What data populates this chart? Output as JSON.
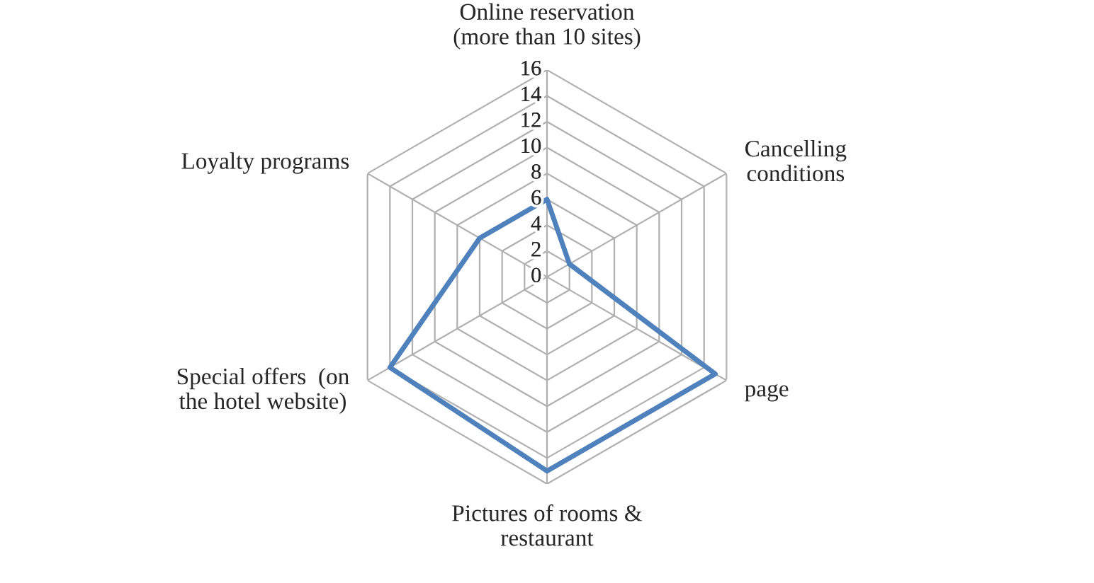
{
  "chart_data": {
    "type": "radar",
    "categories": [
      "Online reservation\n(more than 10 sites)",
      "Cancelling\nconditions",
      "page",
      "Pictures of rooms &\nrestaurant",
      "Special offers  (on\nthe hotel website)",
      "Loyalty programs"
    ],
    "series": [
      {
        "color": "#4f81bd",
        "values": [
          6,
          2,
          15,
          15,
          14,
          6
        ]
      }
    ],
    "ylim": [
      0,
      16
    ],
    "yticks": [
      0,
      2,
      4,
      6,
      8,
      10,
      12,
      14,
      16
    ],
    "grid": true,
    "marker": "none",
    "line_style": "solid"
  }
}
